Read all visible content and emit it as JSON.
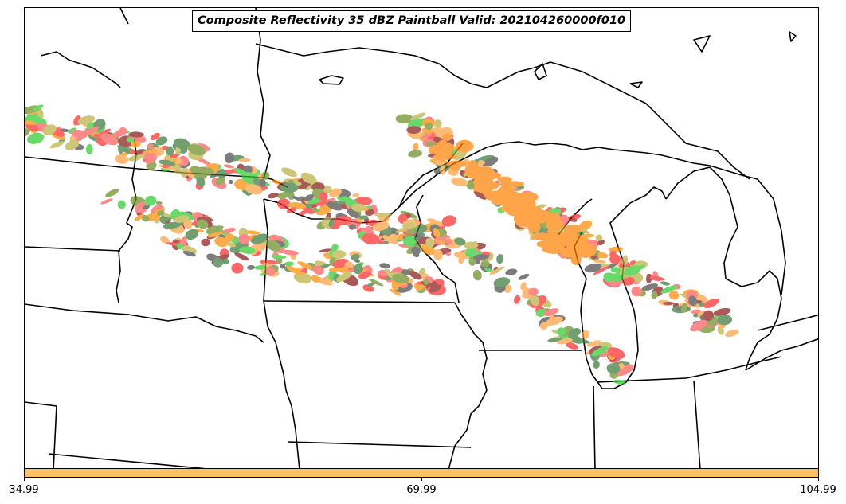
{
  "map": {
    "title": "Composite Reflectivity 35 dBZ Paintball Valid: 202104260000f010",
    "variable": "Composite Reflectivity",
    "threshold": "35 dBZ",
    "product": "Paintball",
    "valid_time": "202104260000f010",
    "region": "Upper Midwest / Great Lakes",
    "paint_colors": [
      "#ff2a2a",
      "#2ecc2e",
      "#ff8a00",
      "#ffa040",
      "#8b1a1a",
      "#6b8e23",
      "#b8b040",
      "#4a4a4a",
      "#ff5a5a",
      "#3a7a3a"
    ]
  },
  "colorbar": {
    "color": "#ffc25e",
    "tick_labels": [
      "34.99",
      "69.99",
      "104.99"
    ]
  }
}
